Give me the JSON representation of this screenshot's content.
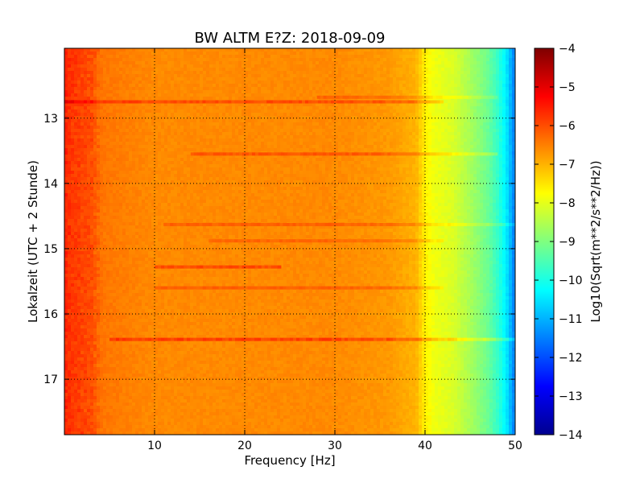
{
  "chart_data": {
    "type": "heatmap",
    "title": "BW ALTM E?Z: 2018-09-09",
    "xlabel": "Frequency [Hz]",
    "ylabel": "Lokalzeit (UTC + 2 Stunde)",
    "xlim": [
      0,
      50
    ],
    "ylim": [
      17.85,
      11.93
    ],
    "y_inverted": true,
    "grid": true,
    "xticks": [
      10,
      20,
      30,
      40,
      50
    ],
    "yticks": [
      13,
      14,
      15,
      16,
      17
    ],
    "colorbar": {
      "label": "Log10(Sqrt(m**2/s**2/Hz))",
      "colormap": "jet",
      "range": [
        -14,
        -4
      ],
      "ticks": [
        -4,
        -5,
        -6,
        -7,
        -8,
        -9,
        -10,
        -11,
        -12,
        -13,
        -14
      ]
    },
    "spectrum_profile": {
      "x": [
        0,
        1,
        3,
        4.2,
        10,
        20,
        30,
        36,
        39,
        40,
        41,
        43,
        45,
        47,
        48,
        49,
        50
      ],
      "value": [
        -5.6,
        -5.8,
        -6.0,
        -6.4,
        -6.6,
        -6.6,
        -6.6,
        -6.75,
        -7.0,
        -7.6,
        -7.9,
        -8.1,
        -8.6,
        -9.2,
        -9.7,
        -10.4,
        -11.6
      ]
    },
    "horizontal_bands": [
      {
        "time": 12.68,
        "f_start": 28,
        "f_end": 48,
        "delta": 0.35
      },
      {
        "time": 12.75,
        "f_start": 0,
        "f_end": 42,
        "delta": 0.6
      },
      {
        "time": 13.55,
        "f_start": 14,
        "f_end": 48,
        "delta": 0.5
      },
      {
        "time": 14.63,
        "f_start": 11,
        "f_end": 50,
        "delta": 0.4
      },
      {
        "time": 14.88,
        "f_start": 16,
        "f_end": 42,
        "delta": 0.35
      },
      {
        "time": 15.28,
        "f_start": 10,
        "f_end": 24,
        "delta": 0.6
      },
      {
        "time": 15.6,
        "f_start": 10,
        "f_end": 42,
        "delta": 0.4
      },
      {
        "time": 16.39,
        "f_start": 5,
        "f_end": 50,
        "delta": 0.7
      }
    ]
  }
}
